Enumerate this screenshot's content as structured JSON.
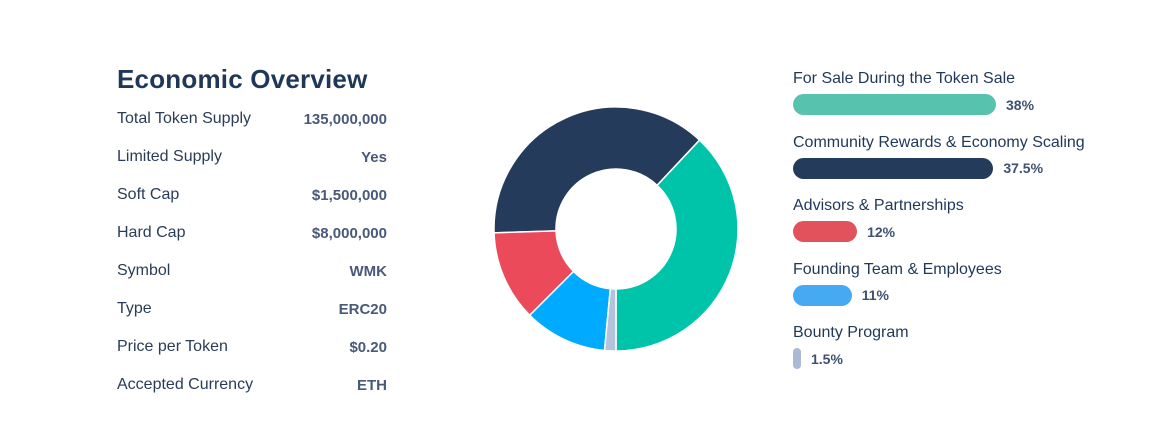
{
  "overview": {
    "title": "Economic Overview",
    "rows": [
      {
        "label": "Total Token Supply",
        "value": "135,000,000"
      },
      {
        "label": "Limited Supply",
        "value": "Yes"
      },
      {
        "label": "Soft Cap",
        "value": "$1,500,000"
      },
      {
        "label": "Hard Cap",
        "value": "$8,000,000"
      },
      {
        "label": "Symbol",
        "value": "WMK"
      },
      {
        "label": "Type",
        "value": "ERC20"
      },
      {
        "label": "Price per Token",
        "value": "$0.20"
      },
      {
        "label": "Accepted Currency",
        "value": "ETH"
      }
    ]
  },
  "chart_data": {
    "type": "pie",
    "title": "",
    "categories": [
      "For Sale During the Token Sale",
      "Community Rewards & Economy Scaling",
      "Advisors & Partnerships",
      "Founding Team & Employees",
      "Bounty Program"
    ],
    "values": [
      38,
      37.5,
      12,
      11,
      1.5
    ],
    "value_labels": [
      "38%",
      "37.5%",
      "12%",
      "11%",
      "1.5%"
    ],
    "colors": [
      "#00c4aa",
      "#243b5b",
      "#ea4a5a",
      "#00aaff",
      "#b3c3dc"
    ],
    "legend_colors": [
      "#57c3af",
      "#243b5b",
      "#e2525d",
      "#45aaf2",
      "#a9b9d6"
    ],
    "legend_position": "right",
    "donut": true
  }
}
